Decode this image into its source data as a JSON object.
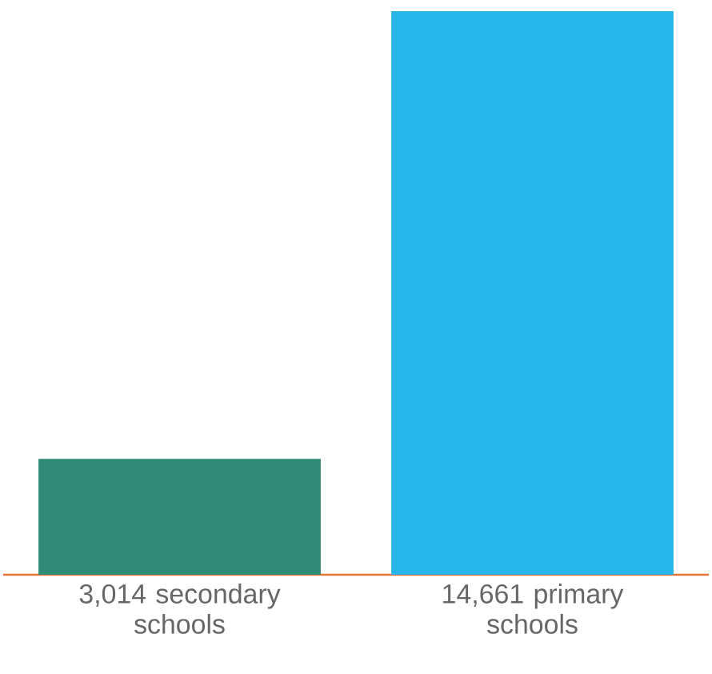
{
  "chart_data": {
    "type": "bar",
    "categories": [
      "secondary schools",
      "primary schools"
    ],
    "values": [
      3014,
      14661
    ],
    "value_labels": [
      "3,014",
      "14,661"
    ],
    "colors": [
      "#2f8a78",
      "#27b4e6"
    ]
  }
}
